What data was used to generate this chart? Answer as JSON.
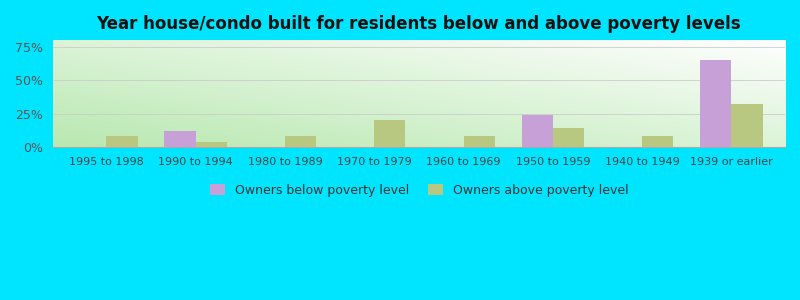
{
  "categories": [
    "1995 to 1998",
    "1990 to 1994",
    "1980 to 1989",
    "1970 to 1979",
    "1960 to 1969",
    "1950 to 1959",
    "1940 to 1949",
    "1939 or earlier"
  ],
  "below_poverty": [
    0,
    12,
    0,
    0,
    0,
    24,
    0,
    65
  ],
  "above_poverty": [
    8,
    4,
    8,
    20,
    8,
    14,
    8,
    32
  ],
  "below_color": "#c8a0d8",
  "above_color": "#b8c880",
  "title": "Year house/condo built for residents below and above poverty levels",
  "title_fontsize": 12,
  "ylabel_ticks": [
    0,
    25,
    50,
    75
  ],
  "ylim": [
    0,
    80
  ],
  "bar_width": 0.35,
  "outer_background": "#00e5ff",
  "legend_below_label": "Owners below poverty level",
  "legend_above_label": "Owners above poverty level"
}
